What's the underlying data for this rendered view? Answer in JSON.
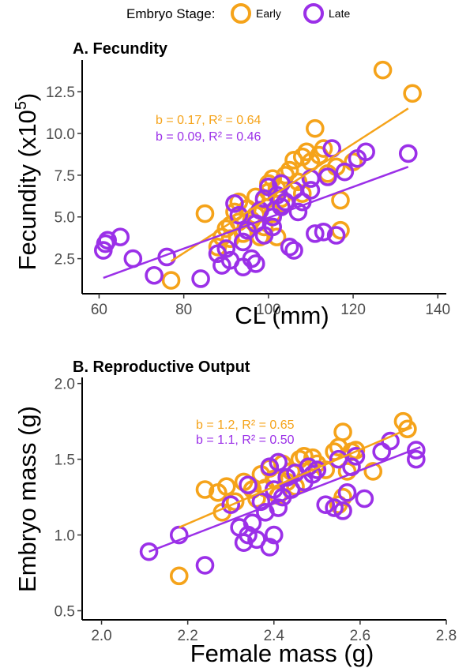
{
  "legend": {
    "title": "Embryo Stage:",
    "items": [
      {
        "label": "Early",
        "color": "#F5A31A"
      },
      {
        "label": "Late",
        "color": "#9B30E8"
      }
    ]
  },
  "chart_data": [
    {
      "type": "scatter",
      "title": "A. Fecundity",
      "xlabel": "CL (mm)",
      "ylabel_main": "Fecundity (x10",
      "ylabel_exp": "5",
      "ylabel_close": ")",
      "xlim": [
        56,
        142
      ],
      "ylim": [
        0.4,
        14.4
      ],
      "xticks": [
        60,
        80,
        100,
        120,
        140
      ],
      "yticks": [
        2.5,
        5.0,
        7.5,
        10.0,
        12.5
      ],
      "xtick_labels": [
        "60",
        "80",
        "100",
        "120",
        "140"
      ],
      "ytick_labels": [
        "2.5",
        "5.0",
        "7.5",
        "10.0",
        "12.5"
      ],
      "grid": false,
      "annotations": [
        {
          "text": "b = 0.17, R² = 0.64",
          "series": "Early"
        },
        {
          "text": "b = 0.09, R² = 0.46",
          "series": "Late"
        }
      ],
      "series": [
        {
          "name": "Early",
          "color": "#F5A31A",
          "fit": [
            [
              77,
              2.35
            ],
            [
              133,
              11.5
            ]
          ],
          "points": [
            [
              77,
              1.2
            ],
            [
              85,
              5.2
            ],
            [
              88,
              3.2
            ],
            [
              89,
              3.8
            ],
            [
              90,
              4.3
            ],
            [
              91,
              4.5
            ],
            [
              91,
              3.7
            ],
            [
              92,
              5.3
            ],
            [
              93,
              5.9
            ],
            [
              93,
              4.7
            ],
            [
              94,
              4.0
            ],
            [
              95,
              5.5
            ],
            [
              96,
              4.8
            ],
            [
              97,
              5.1
            ],
            [
              97,
              6.2
            ],
            [
              98,
              3.8
            ],
            [
              99,
              6.0
            ],
            [
              99,
              4.4
            ],
            [
              100,
              7.0
            ],
            [
              100,
              6.5
            ],
            [
              101,
              7.3
            ],
            [
              101,
              5.2
            ],
            [
              102,
              6.7
            ],
            [
              102,
              3.8
            ],
            [
              103,
              6.1
            ],
            [
              104,
              7.5
            ],
            [
              104,
              5.8
            ],
            [
              105,
              7.8
            ],
            [
              106,
              8.4
            ],
            [
              107,
              7.1
            ],
            [
              108,
              8.6
            ],
            [
              108,
              6.4
            ],
            [
              109,
              8.9
            ],
            [
              110,
              8.3
            ],
            [
              111,
              10.3
            ],
            [
              112,
              8.7
            ],
            [
              113,
              9.1
            ],
            [
              114,
              7.6
            ],
            [
              116,
              8.0
            ],
            [
              117,
              4.2
            ],
            [
              117,
              6.0
            ],
            [
              120,
              8.3
            ],
            [
              127,
              13.8
            ],
            [
              134,
              12.4
            ]
          ]
        },
        {
          "name": "Late",
          "color": "#9B30E8",
          "fit": [
            [
              61,
              1.35
            ],
            [
              133,
              8.0
            ]
          ],
          "points": [
            [
              61,
              3.0
            ],
            [
              61.5,
              3.4
            ],
            [
              62,
              3.6
            ],
            [
              65,
              3.8
            ],
            [
              68,
              2.5
            ],
            [
              73,
              1.5
            ],
            [
              76,
              2.6
            ],
            [
              84,
              1.3
            ],
            [
              88,
              2.8
            ],
            [
              89,
              2.1
            ],
            [
              90,
              3.1
            ],
            [
              91,
              2.4
            ],
            [
              92,
              5.8
            ],
            [
              93,
              5.1
            ],
            [
              94,
              2.0
            ],
            [
              94,
              3.5
            ],
            [
              95,
              4.2
            ],
            [
              96,
              2.5
            ],
            [
              97,
              2.2
            ],
            [
              97,
              4.6
            ],
            [
              98,
              5.4
            ],
            [
              99,
              3.9
            ],
            [
              99,
              6.1
            ],
            [
              100,
              6.8
            ],
            [
              101,
              5.0
            ],
            [
              101,
              4.4
            ],
            [
              102,
              6.3
            ],
            [
              103,
              5.6
            ],
            [
              103,
              7.0
            ],
            [
              104,
              5.9
            ],
            [
              105,
              3.2
            ],
            [
              106,
              3.0
            ],
            [
              106,
              6.6
            ],
            [
              107,
              5.3
            ],
            [
              108,
              5.9
            ],
            [
              110,
              6.6
            ],
            [
              110,
              7.3
            ],
            [
              111,
              4.0
            ],
            [
              113,
              4.1
            ],
            [
              114,
              7.4
            ],
            [
              115,
              9.1
            ],
            [
              116,
              3.9
            ],
            [
              118,
              7.7
            ],
            [
              121,
              8.5
            ],
            [
              123,
              8.9
            ],
            [
              133,
              8.8
            ]
          ]
        }
      ]
    },
    {
      "type": "scatter",
      "title": "B. Reproductive Output",
      "xlabel": "Female mass (g)",
      "ylabel": "Embryo mass (g)",
      "xlim": [
        1.955,
        2.8
      ],
      "ylim": [
        0.44,
        2.04
      ],
      "xticks": [
        2.0,
        2.2,
        2.4,
        2.6,
        2.8
      ],
      "yticks": [
        0.5,
        1.0,
        1.5,
        2.0
      ],
      "xtick_labels": [
        "2.0",
        "2.2",
        "2.4",
        "2.6",
        "2.8"
      ],
      "ytick_labels": [
        "0.5",
        "1.0",
        "1.5",
        "2.0"
      ],
      "grid": false,
      "annotations": [
        {
          "text": "b = 1.2, R² = 0.65",
          "series": "Early"
        },
        {
          "text": "b = 1.1, R² = 0.50",
          "series": "Late"
        }
      ],
      "series": [
        {
          "name": "Early",
          "color": "#F5A31A",
          "fit": [
            [
              2.18,
              1.05
            ],
            [
              2.72,
              1.71
            ]
          ],
          "points": [
            [
              2.18,
              0.73
            ],
            [
              2.24,
              1.3
            ],
            [
              2.27,
              1.28
            ],
            [
              2.28,
              1.15
            ],
            [
              2.29,
              1.32
            ],
            [
              2.31,
              1.22
            ],
            [
              2.33,
              1.35
            ],
            [
              2.35,
              1.3
            ],
            [
              2.36,
              1.24
            ],
            [
              2.37,
              1.4
            ],
            [
              2.38,
              1.31
            ],
            [
              2.39,
              1.44
            ],
            [
              2.4,
              1.37
            ],
            [
              2.41,
              1.26
            ],
            [
              2.42,
              1.47
            ],
            [
              2.43,
              1.35
            ],
            [
              2.44,
              1.42
            ],
            [
              2.45,
              1.32
            ],
            [
              2.46,
              1.5
            ],
            [
              2.47,
              1.52
            ],
            [
              2.48,
              1.45
            ],
            [
              2.49,
              1.51
            ],
            [
              2.5,
              1.47
            ],
            [
              2.52,
              1.43
            ],
            [
              2.54,
              1.55
            ],
            [
              2.55,
              1.58
            ],
            [
              2.55,
              1.2
            ],
            [
              2.56,
              1.68
            ],
            [
              2.56,
              1.25
            ],
            [
              2.57,
              1.42
            ],
            [
              2.58,
              1.55
            ],
            [
              2.59,
              1.56
            ],
            [
              2.63,
              1.42
            ],
            [
              2.7,
              1.75
            ],
            [
              2.71,
              1.7
            ]
          ]
        },
        {
          "name": "Late",
          "color": "#9B30E8",
          "fit": [
            [
              2.11,
              0.89
            ],
            [
              2.74,
              1.58
            ]
          ],
          "points": [
            [
              2.11,
              0.89
            ],
            [
              2.18,
              1.0
            ],
            [
              2.24,
              0.8
            ],
            [
              2.3,
              1.2
            ],
            [
              2.32,
              1.05
            ],
            [
              2.33,
              0.95
            ],
            [
              2.34,
              1.33
            ],
            [
              2.34,
              1.0
            ],
            [
              2.35,
              1.08
            ],
            [
              2.36,
              0.97
            ],
            [
              2.37,
              1.22
            ],
            [
              2.38,
              1.15
            ],
            [
              2.39,
              0.92
            ],
            [
              2.39,
              1.45
            ],
            [
              2.4,
              1.0
            ],
            [
              2.4,
              1.3
            ],
            [
              2.41,
              1.48
            ],
            [
              2.41,
              1.18
            ],
            [
              2.42,
              1.25
            ],
            [
              2.43,
              1.38
            ],
            [
              2.44,
              1.3
            ],
            [
              2.45,
              1.41
            ],
            [
              2.47,
              1.35
            ],
            [
              2.48,
              1.45
            ],
            [
              2.49,
              1.4
            ],
            [
              2.5,
              1.43
            ],
            [
              2.52,
              1.2
            ],
            [
              2.54,
              1.18
            ],
            [
              2.55,
              1.5
            ],
            [
              2.56,
              1.16
            ],
            [
              2.57,
              1.28
            ],
            [
              2.58,
              1.45
            ],
            [
              2.59,
              1.52
            ],
            [
              2.61,
              1.24
            ],
            [
              2.65,
              1.55
            ],
            [
              2.67,
              1.62
            ],
            [
              2.73,
              1.56
            ],
            [
              2.73,
              1.5
            ]
          ]
        }
      ]
    }
  ]
}
